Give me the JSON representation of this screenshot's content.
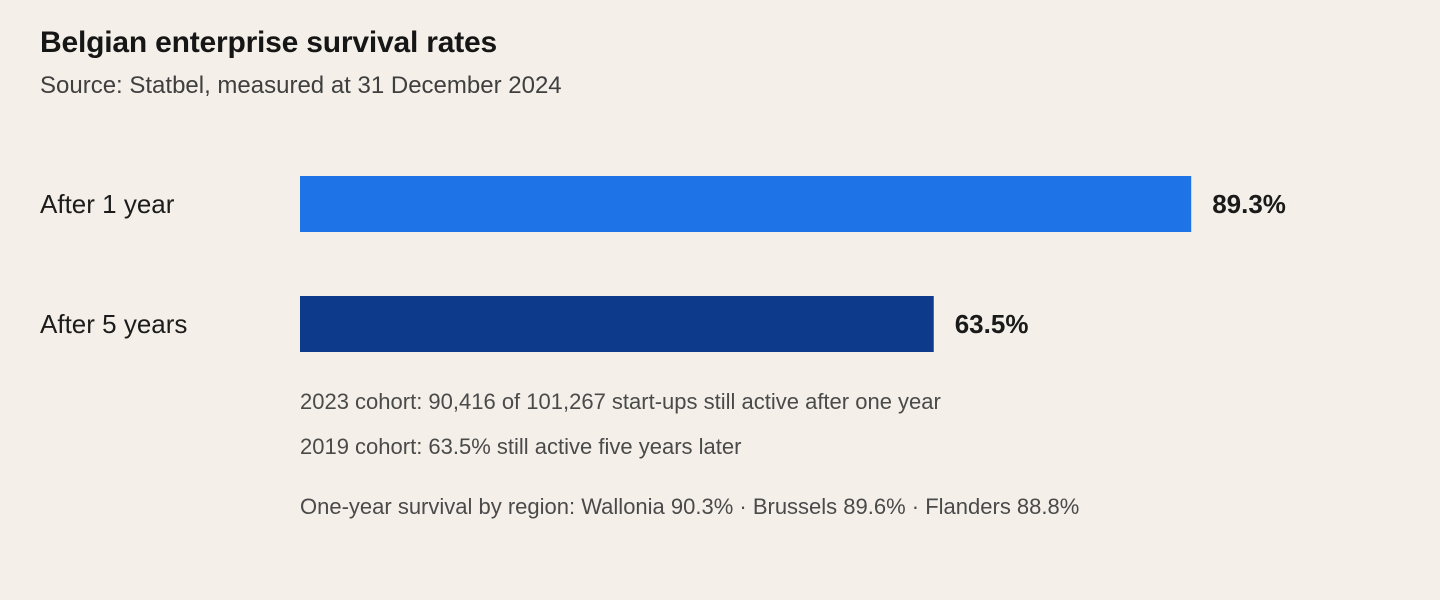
{
  "chart_data": {
    "type": "bar",
    "orientation": "horizontal",
    "title": "Belgian enterprise survival rates",
    "subtitle": "Source: Statbel, measured at 31 December 2024",
    "categories": [
      "After 1 year",
      "After 5 years"
    ],
    "values": [
      89.3,
      63.5
    ],
    "value_labels": [
      "89.3%",
      "63.5%"
    ],
    "colors": [
      "#1e74e6",
      "#0e3a8c"
    ],
    "xlim": [
      0,
      100
    ],
    "grid": false,
    "legend": "none",
    "notes": [
      "2023 cohort: 90,416 of 101,267 start-ups still active after one year",
      "2019 cohort: 63.5% still active five years later",
      "One-year survival by region: Wallonia 90.3% · Brussels 89.6% · Flanders 88.8%"
    ]
  }
}
